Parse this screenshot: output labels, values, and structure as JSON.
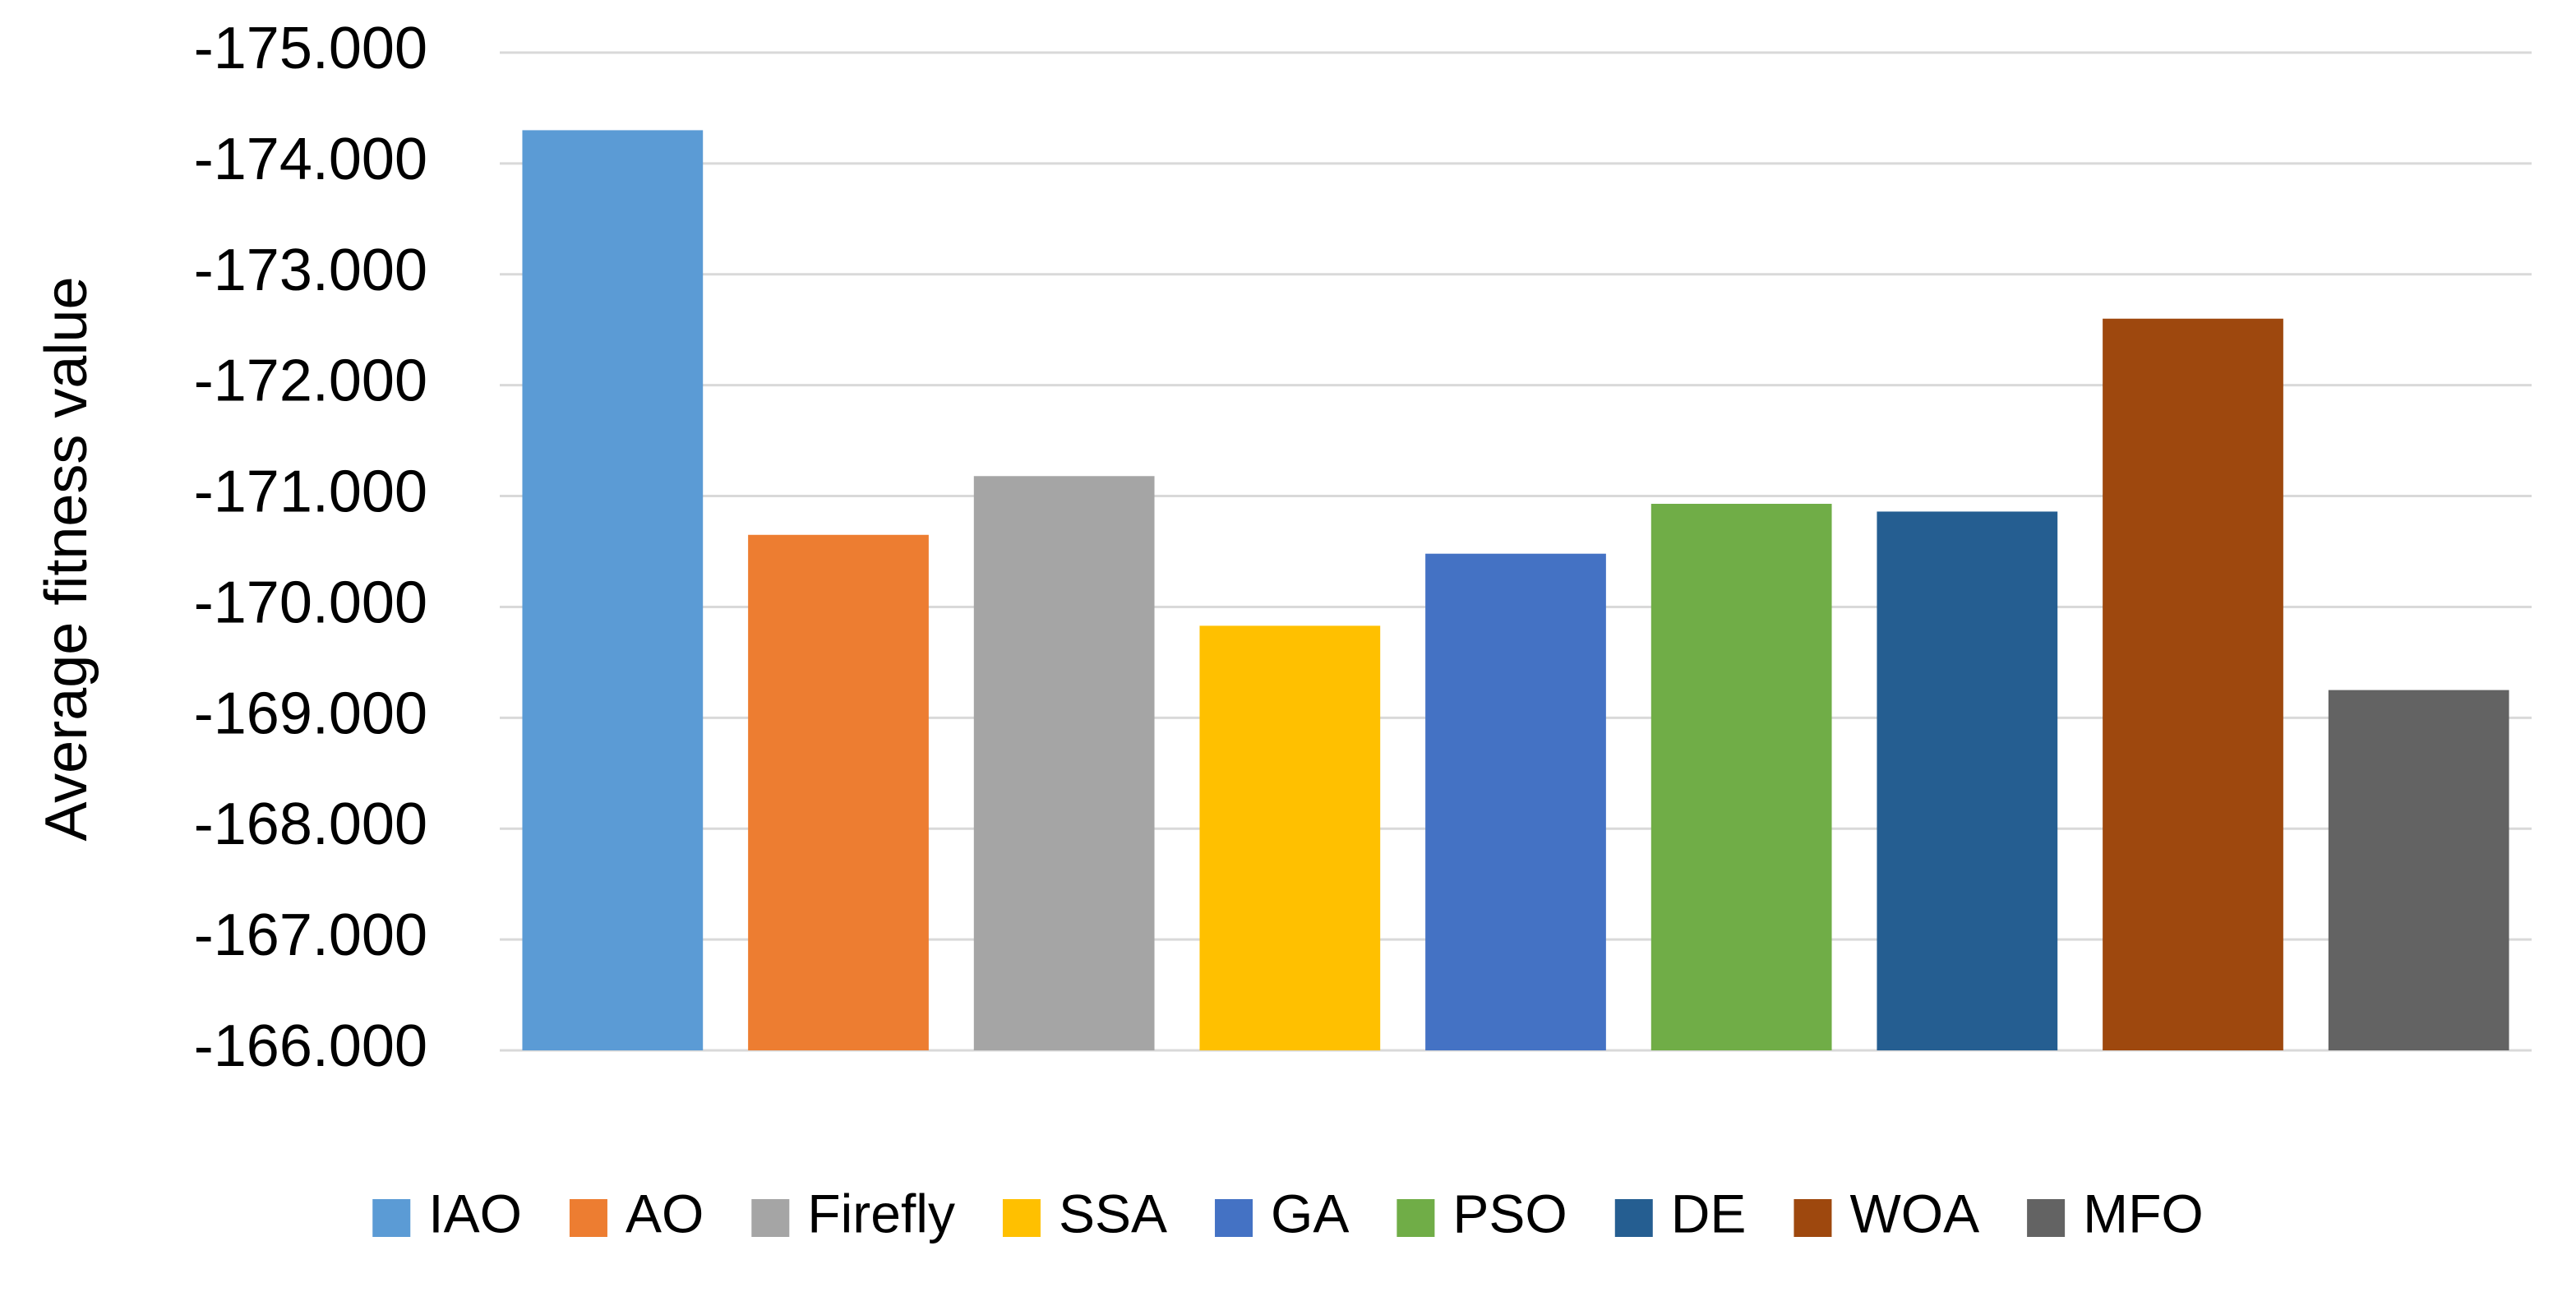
{
  "chart_data": {
    "type": "bar",
    "title": "",
    "xlabel": "",
    "ylabel": "Average fitness value",
    "ylim": [
      -166,
      -175
    ],
    "y_axis_inverted": true,
    "y_ticks": [
      -175,
      -174,
      -173,
      -172,
      -171,
      -170,
      -169,
      -168,
      -167,
      -166
    ],
    "y_tick_labels": [
      "-175.000",
      "-174.000",
      "-173.000",
      "-172.000",
      "-171.000",
      "-170.000",
      "-169.000",
      "-168.000",
      "-167.000",
      "-166.000"
    ],
    "grid": true,
    "legend_position": "bottom",
    "categories": [
      "IAO",
      "AO",
      "Firefly",
      "SSA",
      "GA",
      "PSO",
      "DE",
      "WOA",
      "MFO"
    ],
    "values": [
      -174.3,
      -170.65,
      -171.18,
      -169.83,
      -170.48,
      -170.93,
      -170.86,
      -172.6,
      -169.25
    ],
    "colors": [
      "#5B9BD5",
      "#ED7D31",
      "#A5A5A5",
      "#FFC000",
      "#4472C4",
      "#70AD47",
      "#255E91",
      "#9E480E",
      "#636363"
    ]
  }
}
